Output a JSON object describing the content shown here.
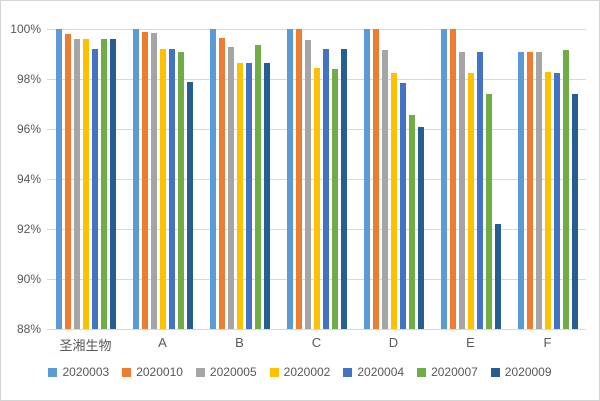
{
  "chart_data": {
    "type": "bar",
    "title": "",
    "xlabel": "",
    "ylabel": "",
    "categories": [
      "圣湘生物",
      "A",
      "B",
      "C",
      "D",
      "E",
      "F"
    ],
    "series": [
      {
        "name": "2020003",
        "color": "#5B9BD5",
        "values": [
          100,
          100,
          100,
          100,
          100,
          100,
          99.1
        ]
      },
      {
        "name": "2020010",
        "color": "#ED7D31",
        "values": [
          99.8,
          99.9,
          99.65,
          100,
          100,
          100,
          99.1
        ]
      },
      {
        "name": "2020005",
        "color": "#A5A5A5",
        "values": [
          99.6,
          99.85,
          99.3,
          99.55,
          99.15,
          99.1,
          99.1
        ]
      },
      {
        "name": "2020002",
        "color": "#FFC000",
        "values": [
          99.6,
          99.2,
          98.65,
          98.45,
          98.25,
          98.25,
          98.3
        ]
      },
      {
        "name": "2020004",
        "color": "#4472C4",
        "values": [
          99.2,
          99.2,
          98.65,
          99.2,
          97.85,
          99.1,
          98.25
        ]
      },
      {
        "name": "2020007",
        "color": "#70AD47",
        "values": [
          99.6,
          99.1,
          99.35,
          98.4,
          96.55,
          97.4,
          99.15
        ]
      },
      {
        "name": "2020009",
        "color": "#255E91",
        "values": [
          99.6,
          97.9,
          98.65,
          99.2,
          96.1,
          92.2,
          97.4
        ]
      }
    ],
    "y_axis": {
      "min": 88,
      "max": 100,
      "step": 2,
      "tick_labels": [
        "88%",
        "90%",
        "92%",
        "94%",
        "96%",
        "98%",
        "100%"
      ]
    },
    "grid": true,
    "legend_position": "bottom",
    "colors": {
      "gridline": "#d9d9d9",
      "axis_text": "#595959",
      "background": "#ffffff",
      "border": "#d4d4d4"
    }
  }
}
